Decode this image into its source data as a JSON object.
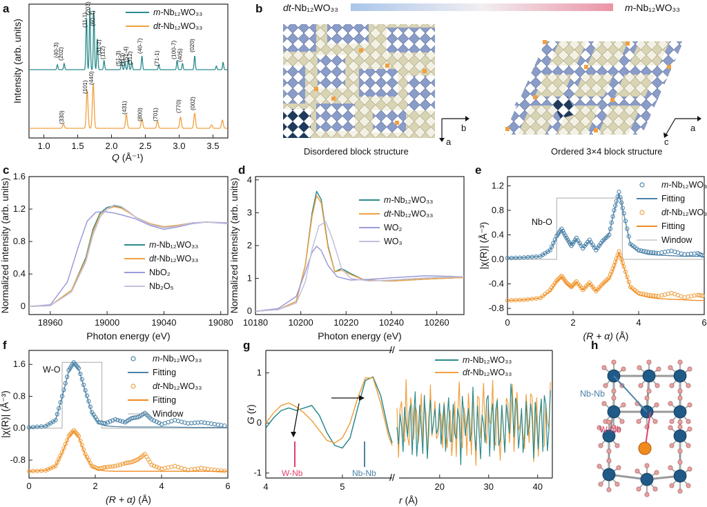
{
  "colors": {
    "teal": "#2a8a8c",
    "orange": "#f0a040",
    "purple": "#9a9ad8",
    "lavender": "#c0c0dc",
    "pinkgray": "#b8a8c8",
    "steel": "#4a82a8",
    "orange_fit": "#f08a1e",
    "red": "#e0406a",
    "window": "#aaaaaa"
  },
  "panel_labels": [
    "a",
    "b",
    "c",
    "d",
    "e",
    "f",
    "g",
    "h"
  ],
  "formula_base": "Nb₁₂WO₃₃",
  "prefix_m": "m-",
  "prefix_dt": "dt-",
  "panel_a": {
    "ylabel": "Intensity (arb. units)",
    "xlabel_var": "Q",
    "xlabel_unit": " (Å⁻¹)",
    "xticks": [
      "1.0",
      "1.5",
      "2.0",
      "2.5",
      "3.0",
      "3.5"
    ],
    "legend": [
      "m-Nb12WO33",
      "dt-Nb12WO33"
    ],
    "peaks_m": [
      "(40-3)",
      "(202)",
      "(11-1)",
      "(203)",
      "(60-4)",
      "(31-2)",
      "(112)",
      "(51-3)",
      "(113)",
      "(51-4)",
      "(312)",
      "(40-7)",
      "(71-1)",
      "(100-7)",
      "(405)",
      "(020)"
    ],
    "peaks_dt": [
      "(330)",
      "(101)",
      "(440)",
      "(431)",
      "(800)",
      "(701)",
      "(770)",
      "(002)"
    ]
  },
  "panel_b": {
    "left_title": "dt-Nb12WO33",
    "right_title": "m-Nb12WO33",
    "left_caption": "Disordered block structure",
    "right_caption": "Ordered 3×4 block structure",
    "axes_left": [
      "b",
      "a"
    ],
    "axes_right": [
      "a",
      "c"
    ]
  },
  "chart_data": [
    {
      "panel": "c",
      "type": "line",
      "xlabel": "Photon energy (eV)",
      "ylabel": "Normalized intensity (arb. units)",
      "xlim": [
        18945,
        19085
      ],
      "ylim": [
        -0.1,
        1.6
      ],
      "xticks": [
        "18960",
        "19000",
        "19040",
        "19080"
      ],
      "yticks": [
        "0",
        "0.4",
        "0.8",
        "1.2",
        "1.6"
      ],
      "legend": [
        "m-Nb12WO33",
        "dt-Nb12WO33",
        "NbO2",
        "Nb2O5"
      ],
      "series": [
        {
          "name": "m-Nb12WO33",
          "x": [
            18945,
            18960,
            18975,
            18985,
            18990,
            18995,
            19000,
            19005,
            19010,
            19015,
            19020,
            19030,
            19040,
            19050,
            19060,
            19070,
            19085
          ],
          "values": [
            0,
            0.01,
            0.2,
            0.6,
            0.95,
            1.15,
            1.22,
            1.24,
            1.22,
            1.17,
            1.1,
            1.02,
            0.98,
            1.0,
            1.03,
            1.04,
            1.02
          ]
        },
        {
          "name": "dt-Nb12WO33",
          "x": [
            18945,
            18960,
            18975,
            18985,
            18990,
            18995,
            19000,
            19005,
            19010,
            19015,
            19020,
            19030,
            19040,
            19050,
            19060,
            19070,
            19085
          ],
          "values": [
            0,
            0.01,
            0.2,
            0.58,
            0.92,
            1.13,
            1.2,
            1.23,
            1.21,
            1.16,
            1.1,
            1.02,
            0.98,
            1.0,
            1.03,
            1.04,
            1.02
          ]
        },
        {
          "name": "NbO2",
          "x": [
            18945,
            18960,
            18972,
            18980,
            18986,
            18992,
            18998,
            19005,
            19012,
            19020,
            19030,
            19040,
            19050,
            19060,
            19070,
            19085
          ],
          "values": [
            0,
            0.02,
            0.3,
            0.75,
            1.05,
            1.16,
            1.17,
            1.15,
            1.12,
            1.08,
            1.0,
            0.95,
            0.98,
            1.02,
            1.04,
            1.03
          ]
        },
        {
          "name": "Nb2O5",
          "x": [
            18945,
            18960,
            18975,
            18985,
            18990,
            18995,
            19000,
            19005,
            19010,
            19015,
            19020,
            19030,
            19040,
            19050,
            19060,
            19070,
            19085
          ],
          "values": [
            0,
            0.01,
            0.18,
            0.55,
            0.88,
            1.1,
            1.2,
            1.25,
            1.23,
            1.17,
            1.1,
            1.01,
            0.97,
            0.99,
            1.03,
            1.04,
            1.02
          ]
        }
      ]
    },
    {
      "panel": "d",
      "type": "line",
      "xlabel": "Photon energy (eV)",
      "ylabel": "Normalized intensity (arb. units)",
      "xlim": [
        10180,
        10272
      ],
      "ylim": [
        -0.1,
        4.1
      ],
      "xticks": [
        "10180",
        "10200",
        "10220",
        "10240",
        "10260"
      ],
      "yticks": [
        "0",
        "1",
        "2",
        "3",
        "4"
      ],
      "legend": [
        "m-Nb12WO33",
        "dt-Nb12WO33",
        "WO2",
        "WO3"
      ],
      "series": [
        {
          "name": "m-Nb12WO33",
          "x": [
            10180,
            10190,
            10198,
            10202,
            10205,
            10207,
            10209,
            10212,
            10215,
            10218,
            10222,
            10228,
            10240,
            10255,
            10272
          ],
          "values": [
            0,
            0.05,
            0.3,
            1.4,
            3.0,
            3.65,
            3.4,
            2.0,
            1.2,
            1.3,
            1.15,
            0.95,
            0.92,
            0.98,
            1.03
          ]
        },
        {
          "name": "dt-Nb12WO33",
          "x": [
            10180,
            10190,
            10198,
            10202,
            10205,
            10207,
            10209,
            10212,
            10215,
            10218,
            10222,
            10228,
            10240,
            10255,
            10272
          ],
          "values": [
            0,
            0.05,
            0.3,
            1.4,
            2.9,
            3.52,
            3.3,
            1.95,
            1.2,
            1.25,
            1.12,
            0.95,
            0.92,
            0.98,
            1.03
          ]
        },
        {
          "name": "WO2",
          "x": [
            10180,
            10190,
            10198,
            10202,
            10205,
            10207,
            10209,
            10212,
            10216,
            10222,
            10230,
            10240,
            10255,
            10272
          ],
          "values": [
            0,
            0.08,
            0.45,
            1.2,
            1.8,
            1.98,
            1.85,
            1.4,
            1.05,
            0.95,
            0.97,
            1.02,
            1.08,
            1.05
          ]
        },
        {
          "name": "WO3",
          "x": [
            10180,
            10190,
            10198,
            10202,
            10205,
            10208,
            10211,
            10214,
            10218,
            10222,
            10230,
            10240,
            10255,
            10272
          ],
          "values": [
            0,
            0.05,
            0.25,
            0.9,
            1.9,
            2.6,
            2.72,
            2.2,
            1.3,
            1.0,
            0.92,
            0.95,
            1.02,
            1.05
          ]
        }
      ]
    },
    {
      "panel": "e",
      "type": "line",
      "xlabel_var": "(R + α)",
      "xlabel_unit": " (Å)",
      "ylabel": "|χ(R)| (Å⁻³)",
      "xlim": [
        0,
        6
      ],
      "ylim": [
        -0.9,
        1.35
      ],
      "xticks": [
        "0",
        "2",
        "4",
        "6"
      ],
      "yticks": [
        "-0.8",
        "-0.4",
        "0.0",
        "0.4",
        "0.8",
        "1.2"
      ],
      "legend": [
        "m-Nb12WO33",
        "Fitting",
        "dt-Nb12WO33",
        "Fitting",
        "Window"
      ],
      "annotation": "Nb-O",
      "window": {
        "x": [
          0,
          1.5,
          1.5,
          3.5,
          3.5,
          6
        ],
        "values": [
          0,
          0,
          1.0,
          1.0,
          0,
          0
        ]
      },
      "series": [
        {
          "name": "m-Nb12WO33",
          "x": [
            0,
            0.5,
            1.0,
            1.3,
            1.5,
            1.65,
            1.8,
            1.95,
            2.1,
            2.3,
            2.5,
            2.7,
            2.9,
            3.1,
            3.25,
            3.4,
            3.55,
            3.75,
            4.0,
            4.3,
            4.6,
            5.0,
            5.4,
            5.8,
            6.0
          ],
          "values": [
            0.02,
            0.03,
            0.05,
            0.15,
            0.38,
            0.5,
            0.35,
            0.22,
            0.35,
            0.18,
            0.32,
            0.15,
            0.3,
            0.4,
            0.8,
            1.1,
            0.75,
            0.25,
            0.15,
            0.12,
            0.1,
            0.14,
            0.08,
            0.1,
            0.05
          ]
        },
        {
          "name": "Fitting (m)",
          "x": [
            0,
            0.5,
            1.0,
            1.3,
            1.5,
            1.65,
            1.8,
            1.95,
            2.1,
            2.3,
            2.5,
            2.7,
            2.9,
            3.1,
            3.25,
            3.4,
            3.55,
            3.75,
            4.0,
            4.3,
            4.6,
            5.0,
            5.4,
            5.8,
            6.0
          ],
          "values": [
            0.02,
            0.03,
            0.05,
            0.15,
            0.36,
            0.48,
            0.34,
            0.23,
            0.33,
            0.19,
            0.3,
            0.16,
            0.28,
            0.42,
            0.78,
            1.08,
            0.73,
            0.24,
            0.12,
            0.08,
            0.07,
            0.06,
            0.05,
            0.05,
            0.05
          ]
        },
        {
          "name": "dt-Nb12WO33",
          "x": [
            0,
            0.5,
            1.0,
            1.3,
            1.5,
            1.65,
            1.8,
            1.95,
            2.1,
            2.3,
            2.5,
            2.7,
            2.9,
            3.1,
            3.25,
            3.4,
            3.55,
            3.75,
            4.0,
            4.3,
            4.6,
            5.0,
            5.4,
            5.8,
            6.0
          ],
          "values": [
            -0.67,
            -0.66,
            -0.63,
            -0.5,
            -0.35,
            -0.27,
            -0.38,
            -0.45,
            -0.36,
            -0.5,
            -0.38,
            -0.52,
            -0.4,
            -0.3,
            -0.1,
            0.13,
            -0.12,
            -0.45,
            -0.55,
            -0.58,
            -0.6,
            -0.55,
            -0.62,
            -0.58,
            -0.6
          ]
        },
        {
          "name": "Fitting (dt)",
          "x": [
            0,
            0.5,
            1.0,
            1.3,
            1.5,
            1.65,
            1.8,
            1.95,
            2.1,
            2.3,
            2.5,
            2.7,
            2.9,
            3.1,
            3.25,
            3.4,
            3.55,
            3.75,
            4.0,
            4.3,
            4.6,
            5.0,
            5.4,
            5.8,
            6.0
          ],
          "values": [
            -0.67,
            -0.66,
            -0.63,
            -0.52,
            -0.36,
            -0.28,
            -0.39,
            -0.46,
            -0.37,
            -0.5,
            -0.39,
            -0.52,
            -0.41,
            -0.32,
            -0.12,
            0.12,
            -0.13,
            -0.46,
            -0.58,
            -0.62,
            -0.64,
            -0.65,
            -0.66,
            -0.67,
            -0.67
          ]
        }
      ]
    },
    {
      "panel": "f",
      "type": "line",
      "xlabel_var": "(R + α)",
      "xlabel_unit": " (Å)",
      "ylabel": "|χ(R)| (Å⁻³)",
      "xlim": [
        0,
        6
      ],
      "ylim": [
        -1.25,
        1.95
      ],
      "xticks": [
        "0",
        "2",
        "4",
        "6"
      ],
      "yticks": [
        "-0.8",
        "0.0",
        "0.8",
        "1.6"
      ],
      "legend": [
        "m-Nb12WO33",
        "Fitting",
        "dt-Nb12WO33",
        "Fitting",
        "Window"
      ],
      "annotation": "W-O",
      "window": {
        "x": [
          0,
          1.0,
          1.0,
          2.2,
          2.2,
          6
        ],
        "values": [
          0,
          0,
          1.65,
          1.65,
          0,
          0
        ]
      },
      "series": [
        {
          "name": "m-Nb12WO33",
          "x": [
            0,
            0.5,
            0.8,
            1.0,
            1.2,
            1.35,
            1.5,
            1.7,
            1.9,
            2.1,
            2.3,
            2.6,
            2.9,
            3.1,
            3.3,
            3.5,
            3.7,
            4.0,
            4.4,
            4.8,
            5.2,
            5.6,
            6.0
          ],
          "values": [
            0.02,
            0.05,
            0.2,
            0.8,
            1.45,
            1.65,
            1.5,
            0.95,
            0.4,
            0.15,
            0.12,
            0.22,
            0.15,
            0.25,
            0.28,
            0.38,
            0.22,
            0.1,
            0.2,
            0.12,
            0.15,
            0.1,
            0.05
          ]
        },
        {
          "name": "Fitting (m)",
          "x": [
            0,
            0.5,
            0.8,
            1.0,
            1.2,
            1.35,
            1.5,
            1.7,
            1.9,
            2.1,
            2.3,
            2.6,
            3.0,
            3.5,
            4.0,
            5.0,
            6.0
          ],
          "values": [
            0.02,
            0.05,
            0.2,
            0.78,
            1.42,
            1.63,
            1.48,
            0.92,
            0.38,
            0.12,
            0.06,
            0.04,
            0.03,
            0.03,
            0.03,
            0.02,
            0.02
          ]
        },
        {
          "name": "dt-Nb12WO33",
          "x": [
            0,
            0.5,
            0.8,
            1.0,
            1.2,
            1.35,
            1.5,
            1.7,
            1.9,
            2.1,
            2.3,
            2.6,
            2.9,
            3.1,
            3.3,
            3.5,
            3.7,
            4.0,
            4.4,
            4.8,
            5.2,
            5.6,
            6.0
          ],
          "values": [
            -1.08,
            -1.06,
            -0.95,
            -0.6,
            -0.2,
            -0.05,
            -0.2,
            -0.65,
            -0.95,
            -1.02,
            -0.98,
            -0.95,
            -0.88,
            -0.85,
            -0.78,
            -0.65,
            -0.92,
            -1.02,
            -0.95,
            -1.05,
            -1.0,
            -1.05,
            -1.08
          ]
        },
        {
          "name": "Fitting (dt)",
          "x": [
            0,
            0.5,
            0.8,
            1.0,
            1.2,
            1.35,
            1.5,
            1.7,
            1.9,
            2.1,
            2.3,
            2.6,
            3.0,
            3.5,
            4.0,
            5.0,
            6.0
          ],
          "values": [
            -1.08,
            -1.06,
            -0.95,
            -0.62,
            -0.22,
            -0.07,
            -0.22,
            -0.67,
            -0.97,
            -1.05,
            -1.07,
            -1.08,
            -1.08,
            -1.08,
            -1.08,
            -1.08,
            -1.08
          ]
        }
      ]
    },
    {
      "panel": "g",
      "type": "line",
      "xlabel_var": "r",
      "xlabel_unit": " (Å)",
      "ylabel_var": "G",
      "ylabel_unit": " (r)",
      "ylim": [
        -1.1,
        1.45
      ],
      "xticks_left": [
        "4",
        "5"
      ],
      "xticks_right": [
        "20",
        "30",
        "40"
      ],
      "yticks": [
        "-1",
        "0",
        "1"
      ],
      "legend": [
        "m-Nb12WO33",
        "dt-Nb12WO33"
      ],
      "annotations": [
        "W-Nb",
        "Nb-Nb"
      ],
      "series": [
        {
          "name": "m-Nb12WO33",
          "x": [
            4.0,
            4.1,
            4.2,
            4.3,
            4.4,
            4.5,
            4.6,
            4.7,
            4.8,
            4.9,
            5.0,
            5.1,
            5.2,
            5.3,
            5.4,
            5.5,
            5.6,
            5.65
          ],
          "values": [
            -0.1,
            0.1,
            0.25,
            0.3,
            0.25,
            0.3,
            0.35,
            0.15,
            -0.2,
            -0.45,
            -0.5,
            -0.3,
            0.3,
            0.85,
            0.92,
            0.55,
            -0.15,
            -0.4
          ]
        },
        {
          "name": "dt-Nb12WO33",
          "x": [
            4.0,
            4.1,
            4.2,
            4.3,
            4.4,
            4.5,
            4.6,
            4.7,
            4.8,
            4.9,
            5.0,
            5.1,
            5.2,
            5.3,
            5.4,
            5.5,
            5.6,
            5.65
          ],
          "values": [
            0.0,
            0.2,
            0.35,
            0.4,
            0.32,
            0.2,
            0.05,
            -0.15,
            -0.35,
            -0.4,
            -0.3,
            0.0,
            0.5,
            0.9,
            0.9,
            0.4,
            -0.25,
            -0.45
          ]
        }
      ]
    }
  ],
  "panel_h": {
    "labels": [
      "Nb-Nb",
      "W-Nb"
    ]
  }
}
